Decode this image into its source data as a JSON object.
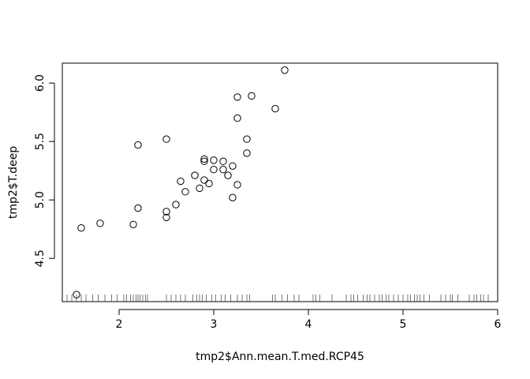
{
  "chart_data": {
    "type": "scatter",
    "title": "",
    "xlabel": "tmp2$Ann.mean.T.med.RCP45",
    "ylabel": "tmp2$T.deep",
    "xlim": [
      1.4,
      6.0
    ],
    "ylim": [
      4.13,
      6.17
    ],
    "grid": false,
    "legend": "none",
    "x_ticks": [
      2,
      3,
      4,
      5,
      6
    ],
    "x_tick_labels": [
      "2",
      "3",
      "4",
      "5",
      "6"
    ],
    "y_ticks": [
      4.5,
      5.0,
      5.5,
      6.0
    ],
    "y_tick_labels": [
      "4.5",
      "5.0",
      "5.5",
      "6.0"
    ],
    "points": [
      {
        "x": 1.55,
        "y": 4.19
      },
      {
        "x": 1.6,
        "y": 4.76
      },
      {
        "x": 1.8,
        "y": 4.8
      },
      {
        "x": 2.15,
        "y": 4.79
      },
      {
        "x": 2.2,
        "y": 5.47
      },
      {
        "x": 2.2,
        "y": 4.93
      },
      {
        "x": 2.5,
        "y": 5.52
      },
      {
        "x": 2.5,
        "y": 4.9
      },
      {
        "x": 2.5,
        "y": 4.85
      },
      {
        "x": 2.6,
        "y": 4.96
      },
      {
        "x": 2.65,
        "y": 5.16
      },
      {
        "x": 2.7,
        "y": 5.07
      },
      {
        "x": 2.8,
        "y": 5.21
      },
      {
        "x": 2.85,
        "y": 5.1
      },
      {
        "x": 2.9,
        "y": 5.35
      },
      {
        "x": 2.9,
        "y": 5.33
      },
      {
        "x": 2.9,
        "y": 5.17
      },
      {
        "x": 2.95,
        "y": 5.14
      },
      {
        "x": 3.0,
        "y": 5.34
      },
      {
        "x": 3.0,
        "y": 5.26
      },
      {
        "x": 3.1,
        "y": 5.33
      },
      {
        "x": 3.1,
        "y": 5.26
      },
      {
        "x": 3.15,
        "y": 5.21
      },
      {
        "x": 3.2,
        "y": 5.29
      },
      {
        "x": 3.2,
        "y": 5.02
      },
      {
        "x": 3.25,
        "y": 5.88
      },
      {
        "x": 3.25,
        "y": 5.7
      },
      {
        "x": 3.25,
        "y": 5.13
      },
      {
        "x": 3.35,
        "y": 5.52
      },
      {
        "x": 3.35,
        "y": 5.4
      },
      {
        "x": 3.4,
        "y": 5.89
      },
      {
        "x": 3.65,
        "y": 5.78
      },
      {
        "x": 3.75,
        "y": 6.11
      }
    ],
    "rug_x": [
      1.45,
      1.5,
      1.55,
      1.6,
      1.65,
      1.72,
      1.78,
      1.85,
      1.92,
      1.98,
      2.05,
      2.08,
      2.12,
      2.15,
      2.18,
      2.2,
      2.22,
      2.25,
      2.28,
      2.3,
      2.5,
      2.55,
      2.6,
      2.65,
      2.7,
      2.78,
      2.82,
      2.85,
      2.88,
      2.92,
      2.98,
      3.02,
      3.08,
      3.12,
      3.18,
      3.25,
      3.3,
      3.35,
      3.38,
      3.62,
      3.65,
      3.72,
      3.78,
      3.85,
      3.9,
      4.05,
      4.08,
      4.12,
      4.25,
      4.4,
      4.45,
      4.48,
      4.52,
      4.58,
      4.62,
      4.65,
      4.7,
      4.75,
      4.78,
      4.82,
      4.85,
      4.9,
      4.95,
      5.0,
      5.05,
      5.08,
      5.12,
      5.15,
      5.18,
      5.22,
      5.28,
      5.4,
      5.45,
      5.5,
      5.52,
      5.58,
      5.7,
      5.75,
      5.78,
      5.82,
      5.85,
      5.9
    ]
  }
}
